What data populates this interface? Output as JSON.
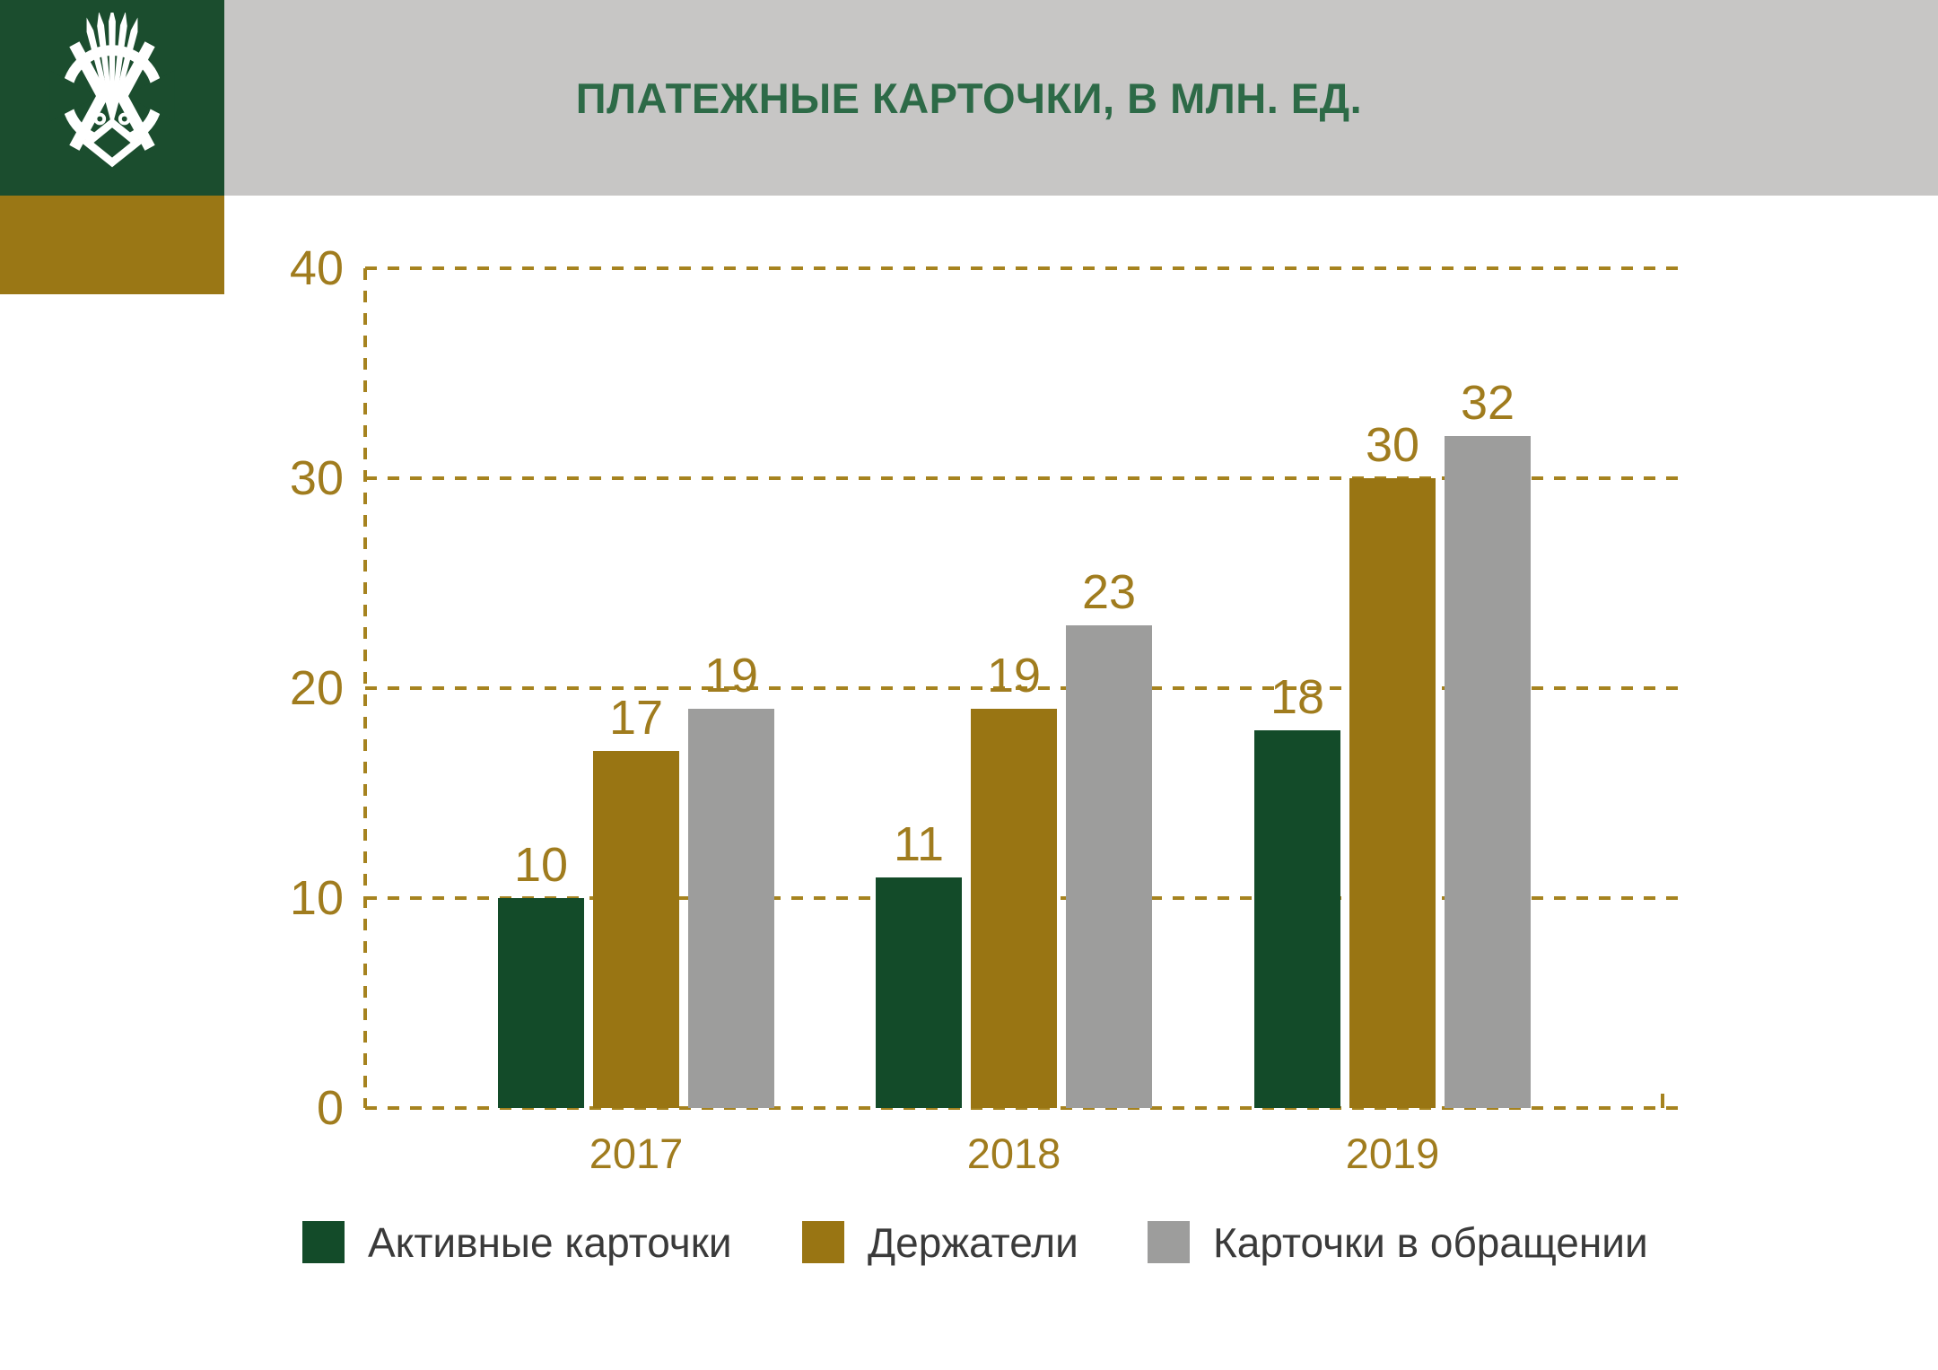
{
  "header": {
    "title": "ПЛАТЕЖНЫЕ КАРТОЧКИ, В МЛН. ЕД."
  },
  "logo": {
    "icon": "national-bank-emblem-icon"
  },
  "colors": {
    "brand_green": "#1B4D2E",
    "brand_gold": "#9A7715",
    "band_gray": "#C7C6C5",
    "title_green": "#2D6A47",
    "axis_gold": "#A6831F",
    "tick_text_gold": "#A07C1E",
    "legend_text": "#3A3A3A",
    "background": "#FFFFFF"
  },
  "chart_data": {
    "type": "bar",
    "title": "ПЛАТЕЖНЫЕ КАРТОЧКИ, В МЛН. ЕД.",
    "categories": [
      "2017",
      "2018",
      "2019"
    ],
    "series": [
      {
        "name": "Активные карточки",
        "color": "#134B29",
        "values": [
          10,
          11,
          18
        ]
      },
      {
        "name": "Держатели",
        "color": "#997513",
        "values": [
          17,
          19,
          30
        ]
      },
      {
        "name": "Карточки в обращении",
        "color": "#9D9D9C",
        "values": [
          19,
          23,
          32
        ]
      }
    ],
    "xlabel": "",
    "ylabel": "",
    "ylim": [
      0,
      40
    ],
    "yticks": [
      0,
      10,
      20,
      30,
      40
    ],
    "grid": true,
    "gridline_style": "dashed",
    "legend_position": "bottom",
    "value_labels": true
  }
}
